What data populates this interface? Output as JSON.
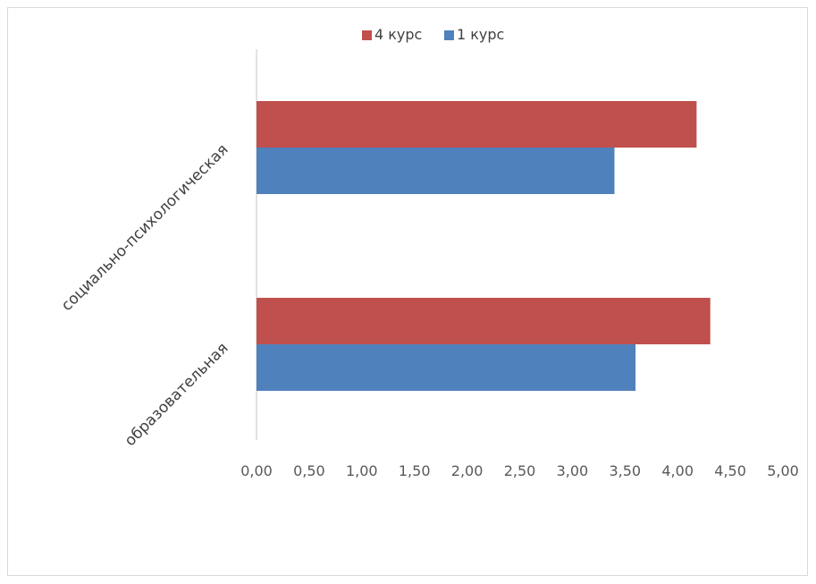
{
  "chart_data": {
    "type": "bar",
    "orientation": "horizontal",
    "categories": [
      "социально-психологическая",
      "образовательная"
    ],
    "series": [
      {
        "name": "4 курс",
        "color": "#C0504D",
        "values": [
          4.18,
          4.31
        ]
      },
      {
        "name": "1 курс",
        "color": "#4F81BD",
        "values": [
          3.4,
          3.6
        ]
      }
    ],
    "x_ticks": [
      "0,00",
      "0,50",
      "1,00",
      "1,50",
      "2,00",
      "2,50",
      "3,00",
      "3,50",
      "4,00",
      "4,50",
      "5,00"
    ],
    "xlim": [
      0,
      5
    ],
    "grid": false,
    "legend_position": "top"
  }
}
